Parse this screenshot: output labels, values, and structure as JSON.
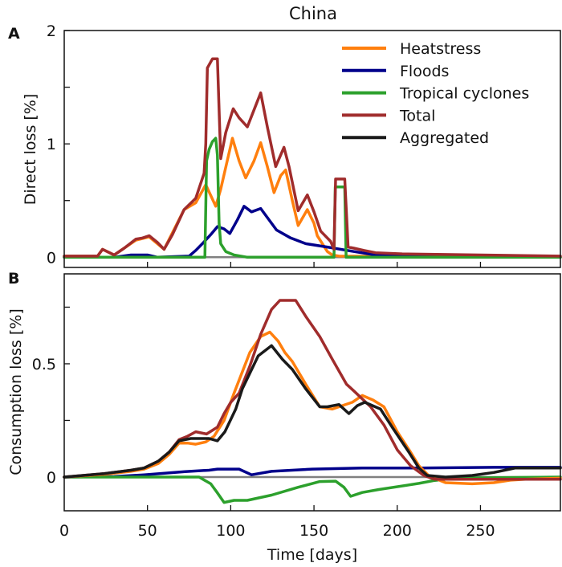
{
  "chart_data": {
    "type": "line",
    "title": "China",
    "xlabel": "Time [days]",
    "xlim": [
      0,
      298
    ],
    "xticks": [
      0,
      50,
      100,
      150,
      200,
      250
    ],
    "xtick_labels": [
      "0",
      "50",
      "100",
      "150",
      "200",
      "250"
    ],
    "legend": {
      "placement": "top-right",
      "panel": "A",
      "entries": [
        {
          "label": "Heatstress",
          "color": "#ff7f0e"
        },
        {
          "label": "Floods",
          "color": "#00008b"
        },
        {
          "label": "Tropical cyclones",
          "color": "#2ca02c"
        },
        {
          "label": "Total",
          "color": "#a02c2c"
        },
        {
          "label": "Aggregated",
          "color": "#1a1a1a"
        }
      ]
    },
    "baseline_color": "#808080",
    "panels": [
      {
        "letter": "A",
        "ylabel": "Direct loss [%]",
        "ylim": [
          -0.09,
          2.0
        ],
        "yticks": [
          0,
          0.5,
          1,
          1.5,
          2
        ],
        "ytick_labels": [
          "0",
          "",
          "1",
          "",
          "2"
        ],
        "series": [
          {
            "name": "Heatstress",
            "color": "#ff7f0e",
            "x": [
              0,
              20,
              23,
              30,
              43,
              51,
              60,
              72,
              79,
              85,
              91,
              94,
              101,
              105,
              109,
              114,
              118,
              122,
              126,
              130,
              133,
              137,
              140.5,
              146,
              150,
              152,
              158,
              161,
              165,
              298
            ],
            "y": [
              0.01,
              0.01,
              0.07,
              0.02,
              0.15,
              0.18,
              0.07,
              0.42,
              0.48,
              0.64,
              0.45,
              0.6,
              1.05,
              0.85,
              0.7,
              0.85,
              1.01,
              0.8,
              0.57,
              0.72,
              0.77,
              0.5,
              0.28,
              0.42,
              0.3,
              0.19,
              0.05,
              0.02,
              0.01,
              0.0
            ]
          },
          {
            "name": "Floods",
            "color": "#00008b",
            "x": [
              0,
              30,
              40,
              50,
              56,
              75,
              79,
              83,
              88,
              92,
              96,
              99.5,
              104,
              108,
              112.5,
              118,
              122,
              127.5,
              136,
              145,
              158,
              174,
              187,
              200,
              298
            ],
            "y": [
              0,
              0.0,
              0.02,
              0.02,
              0.0,
              0.01,
              0.06,
              0.12,
              0.2,
              0.27,
              0.25,
              0.21,
              0.33,
              0.45,
              0.4,
              0.43,
              0.35,
              0.24,
              0.17,
              0.12,
              0.09,
              0.05,
              0.02,
              0.01,
              0.0
            ]
          },
          {
            "name": "Tropical cyclones",
            "color": "#2ca02c",
            "x": [
              0,
              84.5,
              85.5,
              87,
              89,
              91,
              92,
              93,
              94,
              97,
              102,
              110,
              162,
              162.8,
              168.5,
              169.3,
              298
            ],
            "y": [
              0,
              0,
              0.85,
              0.95,
              1.02,
              1.05,
              0.9,
              0.3,
              0.12,
              0.05,
              0.02,
              0.0,
              0.0,
              0.62,
              0.62,
              0.0,
              0.0
            ]
          },
          {
            "name": "Total",
            "color": "#a02c2c",
            "x": [
              0,
              20,
              23,
              30,
              36,
              43,
              47,
              51,
              56,
              60,
              65,
              72,
              79,
              84,
              85,
              86,
              89,
              92,
              94,
              97,
              101.5,
              105,
              110,
              114,
              118,
              122,
              127,
              132,
              135,
              140.5,
              146,
              150,
              154,
              160,
              162,
              163,
              168.5,
              170.5,
              174,
              180,
              187,
              203,
              298
            ],
            "y": [
              0.01,
              0.01,
              0.07,
              0.02,
              0.08,
              0.16,
              0.17,
              0.19,
              0.13,
              0.07,
              0.2,
              0.42,
              0.52,
              0.74,
              1.0,
              1.67,
              1.75,
              1.75,
              0.87,
              1.1,
              1.31,
              1.23,
              1.15,
              1.3,
              1.45,
              1.15,
              0.8,
              0.97,
              0.8,
              0.41,
              0.55,
              0.4,
              0.23,
              0.14,
              0.07,
              0.69,
              0.69,
              0.09,
              0.08,
              0.06,
              0.04,
              0.03,
              0.01
            ]
          }
        ]
      },
      {
        "letter": "B",
        "ylabel": "Consumption loss [%]",
        "ylim": [
          -0.149,
          0.897
        ],
        "yticks": [
          0,
          0.25,
          0.5,
          0.75
        ],
        "ytick_labels": [
          "0",
          "",
          "0.5",
          ""
        ],
        "series": [
          {
            "name": "Floods",
            "color": "#00008b",
            "x": [
              0,
              30,
              48,
              72.5,
              87,
              92,
              105,
              112.5,
              124.5,
              149,
              179,
              213,
              258,
              298
            ],
            "y": [
              0,
              0.002,
              0.01,
              0.024,
              0.03,
              0.035,
              0.035,
              0.01,
              0.025,
              0.035,
              0.04,
              0.04,
              0.043,
              0.043
            ]
          },
          {
            "name": "Tropical cyclones",
            "color": "#2ca02c",
            "x": [
              0,
              81,
              88,
              92,
              96,
              102,
              110,
              124.5,
              140.5,
              153.5,
              163,
              168,
              172,
              179,
              189,
              213,
              222.5,
              235,
              298
            ],
            "y": [
              0,
              0,
              -0.03,
              -0.07,
              -0.112,
              -0.103,
              -0.103,
              -0.08,
              -0.045,
              -0.02,
              -0.018,
              -0.045,
              -0.085,
              -0.068,
              -0.055,
              -0.028,
              -0.015,
              -0.005,
              0.0
            ]
          },
          {
            "name": "Heatstress",
            "color": "#ff7f0e",
            "x": [
              0,
              24,
              40,
              48,
              56.5,
              63,
              69,
              74,
              79,
              85,
              90,
              96,
              102,
              111.5,
              118,
              123.5,
              128.5,
              132.5,
              137,
              145,
              153.5,
              161,
              165,
              173,
              179,
              185.5,
              192,
              200,
              208,
              213,
              219,
              229,
              245,
              258,
              268,
              277,
              298
            ],
            "y": [
              0,
              0.012,
              0.025,
              0.035,
              0.06,
              0.1,
              0.15,
              0.15,
              0.145,
              0.155,
              0.18,
              0.25,
              0.37,
              0.55,
              0.62,
              0.64,
              0.6,
              0.55,
              0.51,
              0.41,
              0.31,
              0.3,
              0.31,
              0.33,
              0.36,
              0.34,
              0.31,
              0.2,
              0.11,
              0.05,
              0.005,
              -0.025,
              -0.03,
              -0.025,
              -0.014,
              -0.01,
              -0.005
            ]
          },
          {
            "name": "Total",
            "color": "#a02c2c",
            "x": [
              0,
              24,
              40,
              48,
              56.5,
              63,
              69,
              74,
              79,
              85.5,
              92,
              96,
              100,
              105,
              111.5,
              118,
              124.5,
              129.5,
              139,
              145,
              153.5,
              161,
              169.5,
              174,
              184,
              192,
              200,
              208,
              216,
              222.5,
              237,
              261,
              298
            ],
            "y": [
              0,
              0.015,
              0.03,
              0.04,
              0.07,
              0.11,
              0.165,
              0.18,
              0.2,
              0.19,
              0.22,
              0.28,
              0.33,
              0.37,
              0.49,
              0.63,
              0.74,
              0.78,
              0.78,
              0.71,
              0.62,
              0.52,
              0.41,
              0.38,
              0.31,
              0.23,
              0.12,
              0.05,
              0.007,
              -0.01,
              -0.01,
              -0.01,
              -0.01
            ]
          },
          {
            "name": "Aggregated",
            "color": "#1a1a1a",
            "x": [
              0,
              24,
              40,
              48,
              56.5,
              63,
              69,
              76,
              87,
              92,
              96.5,
              103,
              107,
              116.5,
              124.5,
              131,
              137,
              145,
              153.5,
              158,
              165,
              171,
              176,
              180.5,
              190,
              197,
              207,
              213,
              218,
              229,
              245,
              258,
              271,
              298
            ],
            "y": [
              0,
              0.015,
              0.03,
              0.04,
              0.07,
              0.11,
              0.16,
              0.17,
              0.17,
              0.16,
              0.2,
              0.3,
              0.39,
              0.535,
              0.58,
              0.52,
              0.475,
              0.39,
              0.31,
              0.31,
              0.32,
              0.28,
              0.315,
              0.33,
              0.3,
              0.22,
              0.11,
              0.04,
              0.007,
              0.0,
              0.007,
              0.02,
              0.04,
              0.04
            ]
          }
        ]
      }
    ]
  }
}
